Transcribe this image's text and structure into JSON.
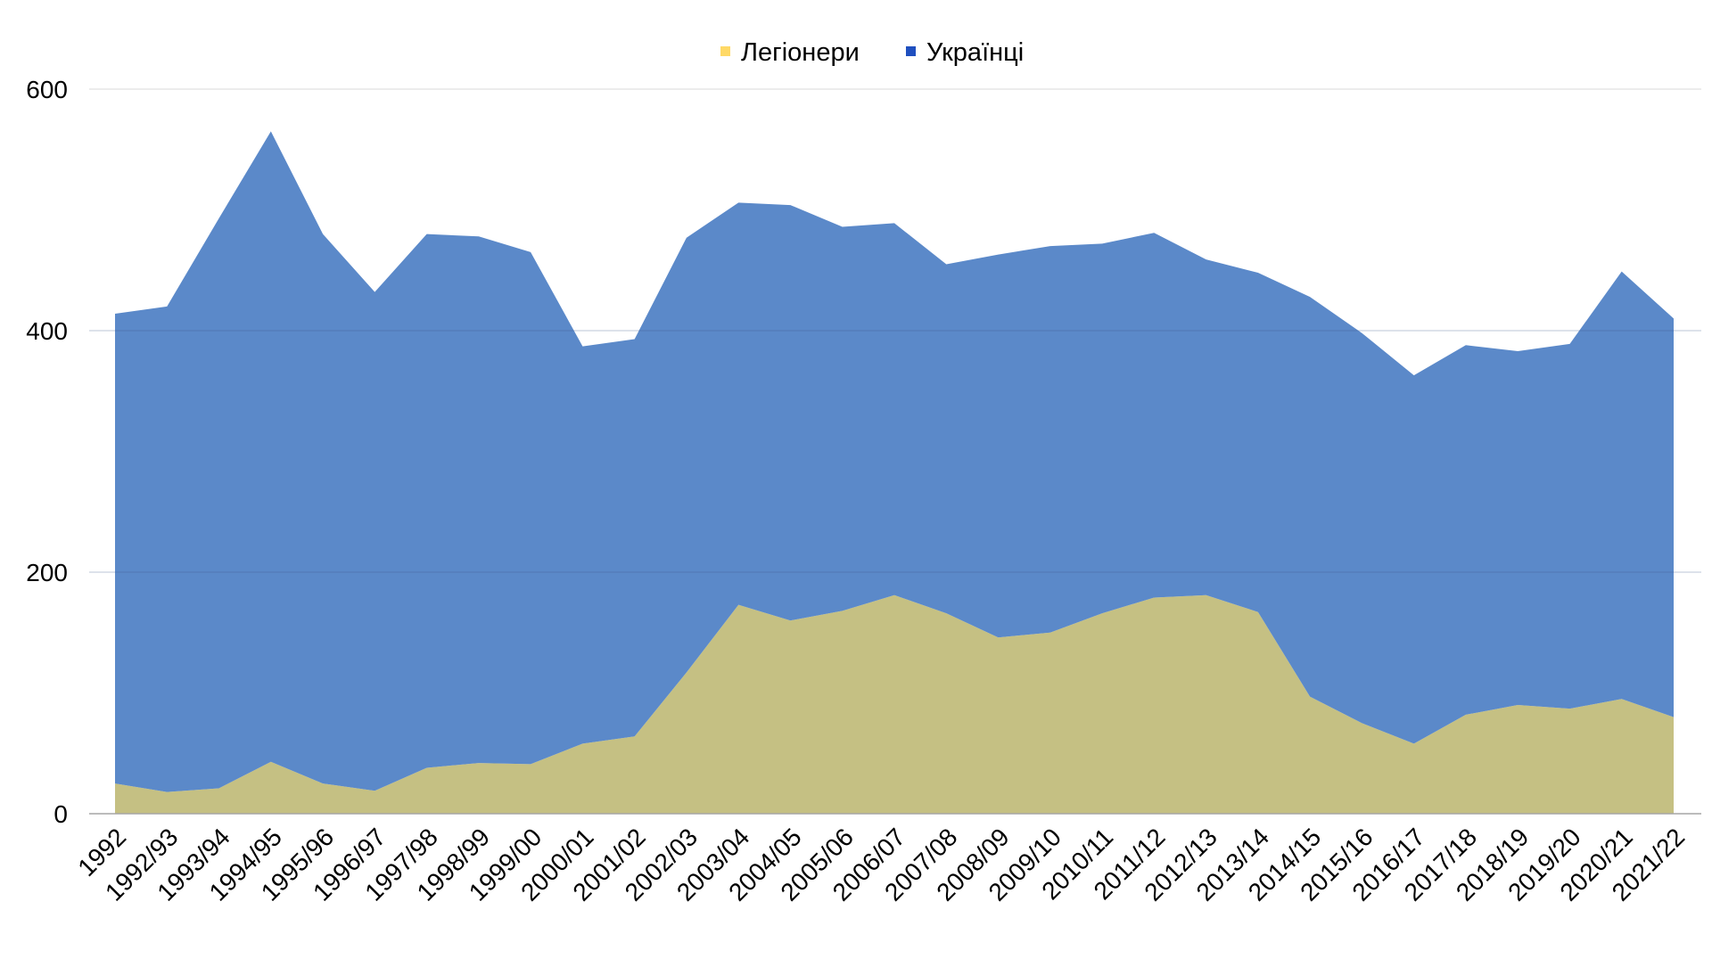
{
  "chart_data": {
    "type": "area",
    "stacked": true,
    "legend_position": "top-center",
    "grid": true,
    "categories": [
      "1992",
      "1992/93",
      "1993/94",
      "1994/95",
      "1995/96",
      "1996/97",
      "1997/98",
      "1998/99",
      "1999/00",
      "2000/01",
      "2001/02",
      "2002/03",
      "2003/04",
      "2004/05",
      "2005/06",
      "2006/07",
      "2007/08",
      "2008/09",
      "2009/10",
      "2010/11",
      "2011/12",
      "2012/13",
      "2013/14",
      "2014/15",
      "2015/16",
      "2016/17",
      "2017/18",
      "2018/19",
      "2019/20",
      "2020/21",
      "2021/22"
    ],
    "series": [
      {
        "name": "Легіонери",
        "legend_color": "#ffd966",
        "fill_color": "#c5c083",
        "values": [
          25,
          18,
          21,
          43,
          25,
          19,
          38,
          42,
          41,
          58,
          64,
          117,
          173,
          160,
          168,
          181,
          166,
          146,
          150,
          166,
          179,
          181,
          167,
          97,
          75,
          58,
          82,
          90,
          87,
          95,
          80
        ]
      },
      {
        "name": "Українці",
        "legend_color": "#1f4fbf",
        "fill_color": "#5b89c9",
        "values": [
          389,
          402,
          472,
          522,
          455,
          413,
          442,
          436,
          424,
          329,
          329,
          360,
          333,
          344,
          318,
          308,
          289,
          317,
          320,
          306,
          302,
          278,
          281,
          331,
          323,
          305,
          306,
          293,
          302,
          354,
          330
        ]
      }
    ],
    "ylim": [
      0,
      600
    ],
    "yticks": [
      "0",
      "200",
      "400",
      "600"
    ],
    "xlabel": "",
    "ylabel": ""
  }
}
